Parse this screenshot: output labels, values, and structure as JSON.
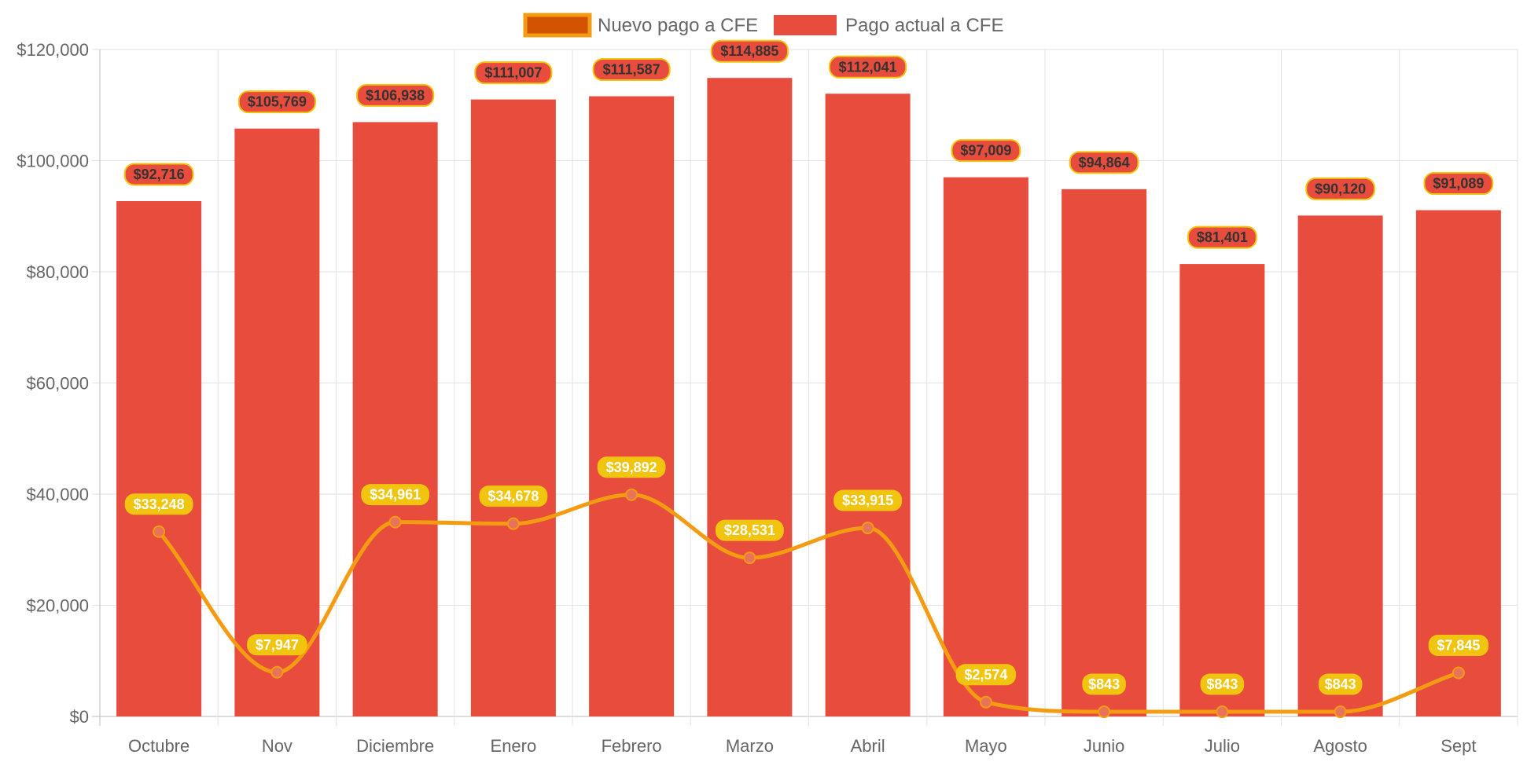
{
  "chart_data": {
    "type": "bar",
    "categories": [
      "Octubre",
      "Nov",
      "Diciembre",
      "Enero",
      "Febrero",
      "Marzo",
      "Abril",
      "Mayo",
      "Junio",
      "Julio",
      "Agosto",
      "Sept"
    ],
    "series": [
      {
        "name": "Nuevo pago a CFE",
        "type": "line",
        "values": [
          33248,
          7947,
          34961,
          34678,
          39892,
          28531,
          33915,
          2574,
          843,
          843,
          843,
          7845
        ],
        "labels": [
          "$33,248",
          "$7,947",
          "$34,961",
          "$34,678",
          "$39,892",
          "$28,531",
          "$33,915",
          "$2,574",
          "$843",
          "$843",
          "$843",
          "$7,845"
        ],
        "color": "#F39C12",
        "point_color": "#E8735A",
        "label_bg": "#F1C40F",
        "label_text_color": "#ffffff"
      },
      {
        "name": "Pago actual a CFE",
        "type": "bar",
        "values": [
          92716,
          105769,
          106938,
          111007,
          111587,
          114885,
          112041,
          97009,
          94864,
          81401,
          90120,
          91089
        ],
        "labels": [
          "$92,716",
          "$105,769",
          "$106,938",
          "$111,007",
          "$111,587",
          "$114,885",
          "$112,041",
          "$97,009",
          "$94,864",
          "$81,401",
          "$90,120",
          "$91,089"
        ],
        "color": "#E74C3C",
        "label_bg": "#E74C3C",
        "label_border": "#F1C40F",
        "label_text_color": "#333333"
      }
    ],
    "ylim": [
      0,
      120000
    ],
    "yticks": [
      0,
      20000,
      40000,
      60000,
      80000,
      100000,
      120000
    ],
    "ytick_labels": [
      "$0",
      "$20,000",
      "$40,000",
      "$60,000",
      "$80,000",
      "$100,000",
      "$120,000"
    ],
    "grid": true,
    "legend_position": "top-center",
    "legend_swatch_fill_line": "#D35400"
  }
}
